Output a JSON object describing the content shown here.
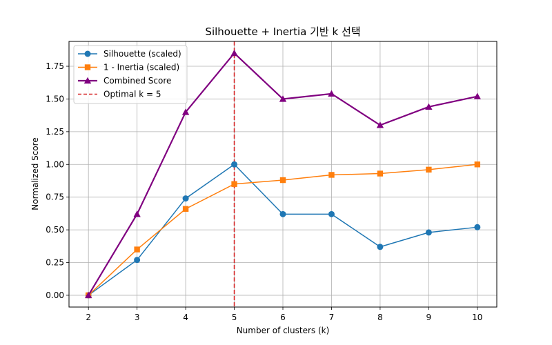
{
  "chart_data": {
    "type": "line",
    "title": "Silhouette + Inertia 기반 k 선택",
    "xlabel": "Number of clusters (k)",
    "ylabel": "Normalized Score",
    "x": [
      2,
      3,
      4,
      5,
      6,
      7,
      8,
      9,
      10
    ],
    "xlim": [
      1.6,
      10.4
    ],
    "ylim": [
      -0.09,
      1.94
    ],
    "yticks": [
      0.0,
      0.25,
      0.5,
      0.75,
      1.0,
      1.25,
      1.5,
      1.75
    ],
    "ytick_labels": [
      "0.00",
      "0.25",
      "0.50",
      "0.75",
      "1.00",
      "1.25",
      "1.50",
      "1.75"
    ],
    "xtick_labels": [
      "2",
      "3",
      "4",
      "5",
      "6",
      "7",
      "8",
      "9",
      "10"
    ],
    "grid": true,
    "legend_position": "top-left",
    "series": [
      {
        "name": "Silhouette (scaled)",
        "color": "#1f77b4",
        "marker": "circle",
        "values": [
          0.0,
          0.27,
          0.74,
          1.0,
          0.62,
          0.62,
          0.37,
          0.48,
          0.52
        ]
      },
      {
        "name": "1 - Inertia (scaled)",
        "color": "#ff7f0e",
        "marker": "square",
        "values": [
          0.0,
          0.35,
          0.66,
          0.85,
          0.88,
          0.92,
          0.93,
          0.96,
          1.0
        ]
      },
      {
        "name": "Combined Score",
        "color": "#800080",
        "marker": "triangle",
        "values": [
          0.0,
          0.62,
          1.4,
          1.85,
          1.5,
          1.54,
          1.3,
          1.44,
          1.52
        ]
      }
    ],
    "vline": {
      "name": "Optimal k = 5",
      "x": 5,
      "color": "#d62728",
      "style": "dashed"
    }
  }
}
